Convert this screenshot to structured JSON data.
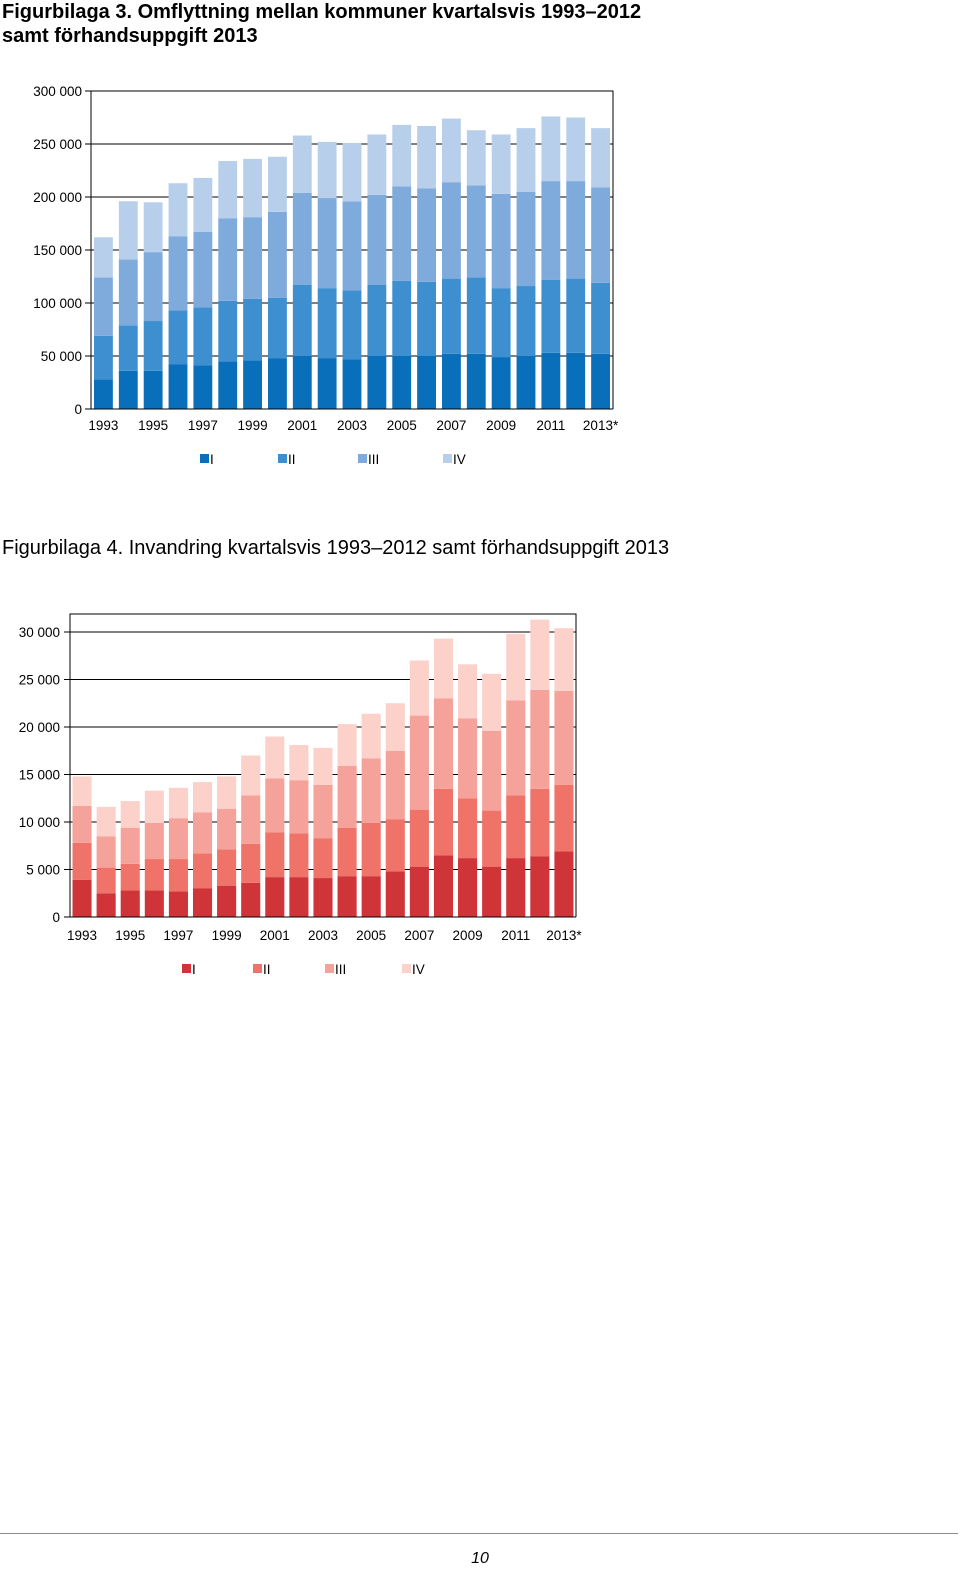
{
  "figures": {
    "fig3": {
      "title": "Figurbilaga 3. Omflyttning mellan kommuner kvartalsvis 1993–2012 samt förhandsuppgift 2013"
    },
    "fig4": {
      "title": "Figurbilaga 4. Invandring kvartalsvis 1993–2012 samt förhandsuppgift 2013"
    }
  },
  "page": {
    "number": "10"
  },
  "chart_data": [
    {
      "id": "chart3",
      "type": "bar",
      "stacked": true,
      "title": "Figurbilaga 3. Omflyttning mellan kommuner kvartalsvis 1993–2012 samt förhandsuppgift 2013",
      "xlabel": "",
      "ylabel": "",
      "ylim": [
        0,
        300000
      ],
      "yticks": [
        0,
        50000,
        100000,
        150000,
        200000,
        250000,
        300000
      ],
      "ytick_labels": [
        "0",
        "50 000",
        "100 000",
        "150 000",
        "200 000",
        "250 000",
        "300 000"
      ],
      "categories": [
        "1993",
        "1994",
        "1995",
        "1996",
        "1997",
        "1998",
        "1999",
        "2000",
        "2001",
        "2002",
        "2003",
        "2004",
        "2005",
        "2006",
        "2007",
        "2008",
        "2009",
        "2010",
        "2011",
        "2012",
        "2013*"
      ],
      "xtick_labels": [
        "1993",
        "",
        "1995",
        "",
        "1997",
        "",
        "1999",
        "",
        "2001",
        "",
        "2003",
        "",
        "2005",
        "",
        "2007",
        "",
        "2009",
        "",
        "2011",
        "",
        "2013*"
      ],
      "grid": "horizontal",
      "legend": "bottom",
      "series": [
        {
          "name": "I",
          "color": "#0a6fba",
          "values": [
            28000,
            36000,
            36000,
            42000,
            41000,
            45000,
            46000,
            48000,
            50000,
            48000,
            47000,
            50000,
            50000,
            50000,
            52000,
            52000,
            49000,
            50000,
            53000,
            53000,
            52000
          ]
        },
        {
          "name": "II",
          "color": "#3e8fd0",
          "values": [
            41000,
            43000,
            47000,
            51000,
            55000,
            57000,
            58000,
            57000,
            67000,
            66000,
            65000,
            67000,
            71000,
            70000,
            71000,
            72000,
            65000,
            66000,
            69000,
            70000,
            67000
          ]
        },
        {
          "name": "III",
          "color": "#7eaadc",
          "values": [
            55000,
            62000,
            65000,
            70000,
            71000,
            78000,
            77000,
            81000,
            87000,
            85000,
            84000,
            85000,
            89000,
            88000,
            91000,
            87000,
            89000,
            89000,
            93000,
            92000,
            90000
          ]
        },
        {
          "name": "IV",
          "color": "#b8cfec",
          "values": [
            38000,
            55000,
            47000,
            50000,
            51000,
            54000,
            55000,
            52000,
            54000,
            53000,
            55000,
            57000,
            58000,
            59000,
            60000,
            52000,
            56000,
            60000,
            61000,
            60000,
            56000
          ]
        }
      ]
    },
    {
      "id": "chart4",
      "type": "bar",
      "stacked": true,
      "title": "Figurbilaga 4. Invandring kvartalsvis 1993–2012 samt förhandsuppgift 2013",
      "xlabel": "",
      "ylabel": "",
      "ylim": [
        0,
        30000
      ],
      "yticks": [
        0,
        5000,
        10000,
        15000,
        20000,
        25000,
        30000
      ],
      "ytick_labels": [
        "0",
        "5 000",
        "10 000",
        "15 000",
        "20 000",
        "25 000",
        "30 000"
      ],
      "categories": [
        "1993",
        "1994",
        "1995",
        "1996",
        "1997",
        "1998",
        "1999",
        "2000",
        "2001",
        "2002",
        "2003",
        "2004",
        "2005",
        "2006",
        "2007",
        "2008",
        "2009",
        "2010",
        "2011",
        "2012",
        "2013*"
      ],
      "xtick_labels": [
        "1993",
        "",
        "1995",
        "",
        "1997",
        "",
        "1999",
        "",
        "2001",
        "",
        "2003",
        "",
        "2005",
        "",
        "2007",
        "",
        "2009",
        "",
        "2011",
        "",
        "2013*"
      ],
      "grid": "horizontal",
      "legend": "bottom",
      "series": [
        {
          "name": "I",
          "color": "#cf3438",
          "values": [
            3900,
            2500,
            2800,
            2800,
            2700,
            3000,
            3300,
            3600,
            4200,
            4200,
            4100,
            4300,
            4300,
            4800,
            5300,
            6500,
            6200,
            5300,
            6200,
            6400,
            6900
          ]
        },
        {
          "name": "II",
          "color": "#ef7368",
          "values": [
            3900,
            2700,
            2800,
            3300,
            3400,
            3700,
            3800,
            4100,
            4700,
            4600,
            4200,
            5100,
            5600,
            5500,
            6000,
            7000,
            6300,
            5900,
            6600,
            7100,
            7000
          ]
        },
        {
          "name": "III",
          "color": "#f4a29a",
          "values": [
            3900,
            3300,
            3800,
            3800,
            4300,
            4300,
            4300,
            5100,
            5700,
            5600,
            5600,
            6500,
            6800,
            7200,
            9900,
            9500,
            8400,
            8400,
            10000,
            10400,
            9900
          ]
        },
        {
          "name": "IV",
          "color": "#fbd1ca",
          "values": [
            3100,
            3100,
            2800,
            3400,
            3200,
            3200,
            3400,
            4200,
            4400,
            3700,
            3900,
            4400,
            4700,
            5000,
            5800,
            6300,
            5700,
            6000,
            7000,
            7400,
            6600
          ]
        }
      ]
    }
  ]
}
